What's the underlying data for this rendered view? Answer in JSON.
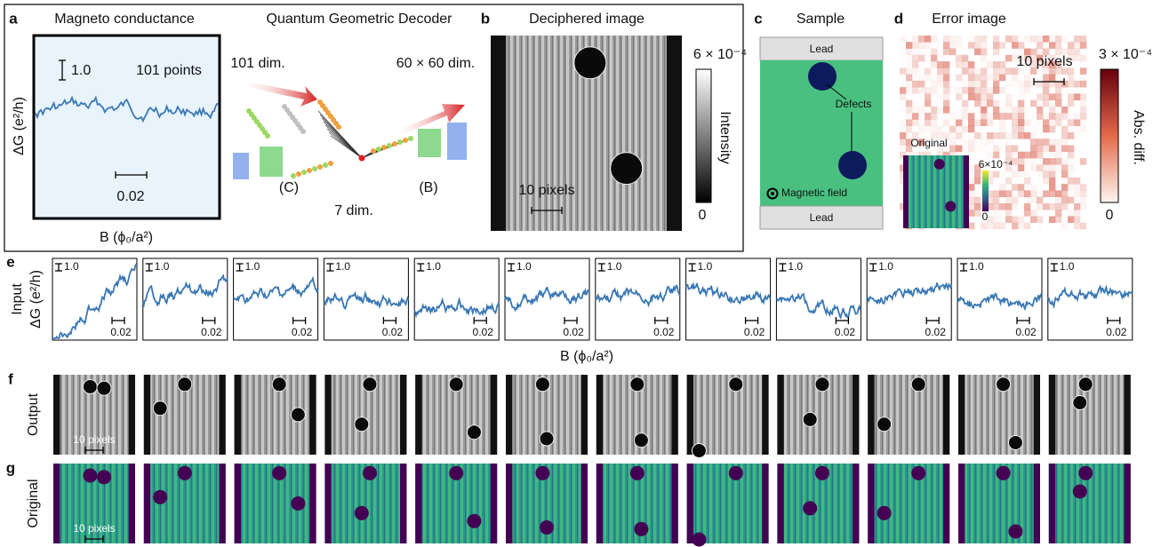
{
  "panels": {
    "a": {
      "label": "a",
      "title": "Magneto conductance",
      "scale_y": "1.0",
      "points": "101 points",
      "scale_x": "0.02",
      "y_label": "ΔG (e²/h)",
      "x_label": "B (ϕ₀/a²)"
    },
    "decoder": {
      "title": "Quantum Geometric Decoder",
      "input_dim": "101 dim.",
      "output_dim": "60 × 60 dim.",
      "encoder": "(C)",
      "latent_dim": "7 dim.",
      "decoder": "(B)"
    },
    "b": {
      "label": "b",
      "title": "Deciphered image",
      "scale": "10 pixels",
      "cbar_max": "6 × 10⁻⁴",
      "cbar_label": "Intensity",
      "cbar_min": "0"
    },
    "c": {
      "label": "c",
      "title": "Sample",
      "lead_top": "Lead",
      "defects": "Defects",
      "field": "Magnetic field",
      "lead_bottom": "Lead"
    },
    "d": {
      "label": "d",
      "title": "Error image",
      "scale": "10 pixels",
      "cbar_max": "3 × 10⁻⁴",
      "cbar_label": "Abs. diff.",
      "cbar_min": "0",
      "inset_title": "Original",
      "inset_max": "6×10⁻⁴",
      "inset_min": "0"
    },
    "e": {
      "label": "e",
      "row_label": "Input",
      "y_label": "ΔG (e²/h)",
      "x_label": "B (ϕ₀/a²)",
      "traces": [
        {
          "scale_y": "1.0",
          "scale_x": "0.02"
        },
        {
          "scale_y": "1.0",
          "scale_x": "0.02"
        },
        {
          "scale_y": "1.0",
          "scale_x": "0.02"
        },
        {
          "scale_y": "1.0",
          "scale_x": "0.02"
        },
        {
          "scale_y": "1.0",
          "scale_x": "0.02"
        },
        {
          "scale_y": "1.0",
          "scale_x": "0.02"
        },
        {
          "scale_y": "1.0",
          "scale_x": "0.02"
        },
        {
          "scale_y": "1.0",
          "scale_x": "0.02"
        },
        {
          "scale_y": "1.0",
          "scale_x": "0.02"
        },
        {
          "scale_y": "1.0",
          "scale_x": "0.02"
        },
        {
          "scale_y": "1.0",
          "scale_x": "0.02"
        },
        {
          "scale_y": "1.0",
          "scale_x": "0.02"
        }
      ]
    },
    "f": {
      "label": "f",
      "row_label": "Output",
      "scale": "10 pixels"
    },
    "g": {
      "label": "g",
      "row_label": "Original",
      "scale": "10 pixels"
    }
  }
}
